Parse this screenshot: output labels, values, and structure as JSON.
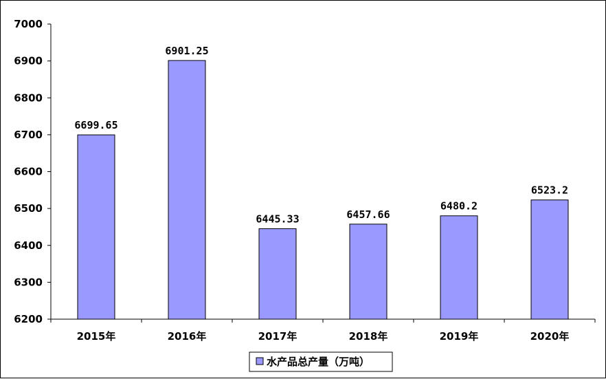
{
  "chart_data": {
    "type": "bar",
    "categories": [
      "2015年",
      "2016年",
      "2017年",
      "2018年",
      "2019年",
      "2020年"
    ],
    "series": [
      {
        "name": "水产品总产量（万吨）",
        "values": [
          6699.65,
          6901.25,
          6445.33,
          6457.66,
          6480.2,
          6523.2
        ],
        "value_labels": [
          "6699.65",
          "6901.25",
          "6445.33",
          "6457.66",
          "6480.2",
          "6523.2"
        ],
        "color": "#9999ff"
      }
    ],
    "ylim": [
      6200,
      7000
    ],
    "yticks": [
      6200,
      6300,
      6400,
      6500,
      6600,
      6700,
      6800,
      6900,
      7000
    ],
    "grid": false,
    "legend": "bottom"
  }
}
